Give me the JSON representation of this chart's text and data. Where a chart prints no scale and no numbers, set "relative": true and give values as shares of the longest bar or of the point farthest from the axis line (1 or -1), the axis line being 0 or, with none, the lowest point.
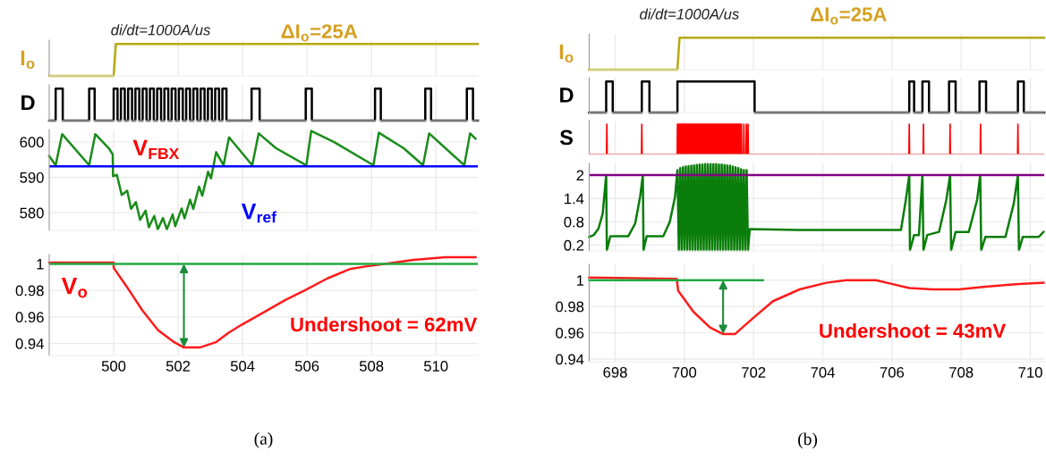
{
  "chart_data": [
    {
      "type": "step",
      "relative": true,
      "ylabel": "I$_{o}$",
      "xlim": [
        498.0,
        511.3
      ],
      "xticks": [
        500,
        502,
        504,
        506,
        508,
        510
      ],
      "tick_labels": false,
      "grid": "x",
      "annotations": [
        "di/dt=1000A/us",
        "ΔI$_{o}$=25A"
      ],
      "series": [
        {
          "color": "#b5aa10",
          "x": [
            498.0,
            500.0,
            500.07,
            511.3
          ],
          "values": [
            0,
            0,
            1,
            1
          ],
          "type": "line"
        }
      ]
    },
    {
      "type": "step",
      "relative": true,
      "ylabel": "D",
      "xlim": [
        498.0,
        511.3
      ],
      "xticks": [
        500,
        502,
        504,
        506,
        508,
        510
      ],
      "tick_labels": false,
      "grid": "x",
      "series": [
        {
          "color": "#000000",
          "x": [
            498.0,
            498.2,
            498.42,
            499.24,
            499.41,
            500.0,
            500.12,
            500.225,
            500.345,
            500.45,
            500.57,
            500.675,
            500.795,
            500.9,
            501.02,
            501.125,
            501.245,
            501.35,
            501.47,
            501.575,
            501.695,
            501.8,
            501.92,
            502.025,
            502.145,
            502.25,
            502.37,
            502.475,
            502.595,
            502.7,
            502.82,
            502.925,
            503.045,
            503.15,
            503.27,
            503.375,
            503.5,
            504.28,
            504.53,
            505.96,
            506.15,
            508.11,
            508.29,
            509.67,
            509.85,
            510.96,
            511.15,
            511.3
          ],
          "values": [
            0,
            1,
            0,
            1,
            0,
            1,
            0,
            1,
            0,
            1,
            0,
            1,
            0,
            1,
            0,
            1,
            0,
            1,
            0,
            1,
            0,
            1,
            0,
            1,
            0,
            1,
            0,
            1,
            0,
            1,
            0,
            1,
            0,
            1,
            0,
            1,
            0,
            1,
            0,
            1,
            0,
            1,
            0,
            1,
            0,
            1,
            0,
            0
          ]
        }
      ]
    },
    {
      "type": "line",
      "xlim": [
        498.0,
        511.3
      ],
      "xticks": [
        500,
        502,
        504,
        506,
        508,
        510
      ],
      "ylim": [
        575,
        603.5
      ],
      "yticks": [
        580,
        590,
        600
      ],
      "tick_labels": "y",
      "grid": true,
      "annotations": [
        "V$_{FBX}$"
      ],
      "ref_lines": [
        {
          "axis": "y",
          "value": 593.1,
          "label": "V$_{ref}$",
          "color": "#0000ff"
        }
      ],
      "series": [
        {
          "color": "#1a8c1a",
          "x": [
            498.0,
            498.2,
            498.4,
            499.24,
            499.43,
            499.85,
            499.97,
            499.98,
            500.1,
            500.25,
            500.42,
            500.54,
            500.69,
            500.82,
            500.99,
            501.09,
            501.26,
            501.37,
            501.53,
            501.65,
            501.83,
            501.91,
            502.11,
            502.2,
            502.37,
            502.47,
            502.65,
            502.75,
            502.93,
            503.02,
            503.18,
            503.41,
            503.58,
            504.3,
            504.5,
            505.04,
            505.98,
            506.13,
            506.83,
            508.06,
            508.23,
            509.0,
            509.6,
            509.79,
            510.88,
            511.06,
            511.23
          ],
          "values": [
            596.0,
            593.4,
            602.2,
            593.4,
            602.2,
            598.2,
            596.5,
            590.3,
            590.7,
            585.0,
            586.2,
            581.1,
            583.0,
            578.0,
            580.6,
            575.9,
            579.1,
            575.3,
            578.5,
            575.3,
            579.5,
            576.2,
            581.2,
            578.4,
            583.7,
            581.1,
            587.4,
            584.8,
            591.6,
            589.7,
            597.1,
            593.4,
            601.3,
            593.4,
            602.4,
            598.2,
            593.4,
            603.1,
            600.0,
            593.4,
            602.6,
            598.2,
            593.4,
            602.4,
            593.4,
            602.4,
            600.9
          ]
        }
      ]
    },
    {
      "type": "line",
      "xlim": [
        498.0,
        511.3
      ],
      "xticks": [
        500,
        502,
        504,
        506,
        508,
        510
      ],
      "ylim": [
        0.931,
        1.007
      ],
      "yticks": [
        0.94,
        0.96,
        0.98,
        1
      ],
      "grid": true,
      "annotations": [
        "V$_{o}$",
        "Undershoot = 62mV",
        "(a)"
      ],
      "ref_lines": [
        {
          "axis": "y",
          "value": 1,
          "color": "#22aa44"
        }
      ],
      "series": [
        {
          "color": "#ff1a1a",
          "x": [
            498.0,
            500.0,
            500.0,
            500.4,
            500.89,
            501.38,
            501.88,
            502.18,
            502.67,
            503.17,
            503.56,
            503.96,
            504.55,
            505.34,
            505.93,
            506.63,
            507.32,
            507.81,
            508.41,
            509.3,
            510.29,
            511.23
          ],
          "values": [
            1.001,
            1.001,
            0.997,
            0.983,
            0.965,
            0.95,
            0.941,
            0.937,
            0.937,
            0.941,
            0.948,
            0.954,
            0.962,
            0.973,
            0.98,
            0.989,
            0.996,
            0.998,
            1.0,
            1.003,
            1.005,
            1.005
          ]
        }
      ]
    },
    {
      "type": "step",
      "relative": true,
      "ylabel": "I$_{o}$",
      "xlim": [
        697.25,
        710.4
      ],
      "xticks": [
        698,
        700,
        702,
        704,
        706,
        708,
        710
      ],
      "tick_labels": false,
      "grid": "x",
      "annotations": [
        "di/dt=1000A/us",
        "ΔI$_{o}$=25A"
      ],
      "series": [
        {
          "color": "#b5aa10",
          "x": [
            697.25,
            699.8,
            699.86,
            710.4
          ],
          "values": [
            0,
            0,
            1,
            1
          ],
          "type": "line"
        }
      ]
    },
    {
      "type": "step",
      "relative": true,
      "ylabel": "D",
      "xlim": [
        697.25,
        710.4
      ],
      "xticks": [
        698,
        700,
        702,
        704,
        706,
        708,
        710
      ],
      "tick_labels": false,
      "grid": "x",
      "series": [
        {
          "color": "#000000",
          "x": [
            697.25,
            697.74,
            697.93,
            698.77,
            698.99,
            699.8,
            702.03,
            706.5,
            706.64,
            706.88,
            707.07,
            707.65,
            707.84,
            708.53,
            708.72,
            709.64,
            709.81,
            710.4
          ],
          "values": [
            0,
            1,
            0,
            1,
            0,
            1,
            0,
            1,
            0,
            1,
            0,
            1,
            0,
            1,
            0,
            1,
            0,
            0
          ]
        }
      ]
    },
    {
      "type": "area",
      "relative": true,
      "ylabel": "S",
      "xlim": [
        697.25,
        710.4
      ],
      "xticks": [
        698,
        700,
        702,
        704,
        706,
        708,
        710
      ],
      "tick_labels": false,
      "grid": "x",
      "series": [
        {
          "color": "#ff0000",
          "x": [
            697.25,
            697.75,
            697.76,
            697.77,
            698.76,
            698.77,
            698.78,
            699.79,
            699.8,
            701.65,
            701.66,
            701.71,
            701.72,
            701.73,
            701.78,
            701.79,
            701.8,
            701.83,
            701.84,
            701.85,
            706.49,
            706.5,
            706.51,
            706.9,
            706.91,
            706.92,
            707.67,
            707.68,
            707.69,
            708.55,
            708.56,
            708.57,
            709.63,
            709.64,
            709.65,
            710.4
          ],
          "values": [
            0,
            0,
            1,
            0,
            0,
            1,
            0,
            0,
            1,
            1,
            0,
            0,
            1,
            0,
            0,
            1,
            0,
            0,
            1,
            0,
            0,
            1,
            0,
            0,
            1,
            0,
            0,
            1,
            0,
            0,
            1,
            0,
            0,
            1,
            0,
            0
          ]
        }
      ]
    },
    {
      "type": "line",
      "xlim": [
        697.25,
        710.4
      ],
      "xticks": [
        698,
        700,
        702,
        704,
        706,
        708,
        710
      ],
      "ylim": [
        0.05,
        2.3
      ],
      "yticks": [
        0.2,
        0.8,
        1.4,
        2
      ],
      "tick_labels": "y",
      "grid": true,
      "ref_lines": [
        {
          "axis": "y",
          "value": 2,
          "color": "#800080"
        }
      ],
      "series": [
        {
          "color": "#0a7d0a",
          "x": [
            697.25,
            697.38,
            697.52,
            697.64,
            697.74,
            697.76,
            697.86,
            698.38,
            698.58,
            698.72,
            698.8,
            698.82,
            698.91,
            699.39,
            699.58,
            699.73,
            699.8,
            699.84,
            699.88,
            699.92,
            699.96,
            700.0,
            700.04,
            700.08,
            700.12,
            700.16,
            700.2,
            700.24,
            700.28,
            700.32,
            700.36,
            700.4,
            700.44,
            700.48,
            700.52,
            700.56,
            700.6,
            700.64,
            700.68,
            700.72,
            700.76,
            700.8,
            700.84,
            700.88,
            700.92,
            700.96,
            701.0,
            701.04,
            701.08,
            701.12,
            701.16,
            701.2,
            701.24,
            701.28,
            701.32,
            701.36,
            701.4,
            701.44,
            701.48,
            701.52,
            701.56,
            701.6,
            701.64,
            701.68,
            701.72,
            701.76,
            701.8,
            701.84,
            701.89,
            703.33,
            706.26,
            706.4,
            706.5,
            706.52,
            706.64,
            706.78,
            706.88,
            706.91,
            707.02,
            707.36,
            707.57,
            707.68,
            707.71,
            707.84,
            708.22,
            708.46,
            708.55,
            708.58,
            708.7,
            709.28,
            709.52,
            709.64,
            709.67,
            709.78,
            710.24,
            710.38
          ],
          "values": [
            0.41,
            0.46,
            0.63,
            1.01,
            2.0,
            0.07,
            0.43,
            0.43,
            0.76,
            1.44,
            2.0,
            0.07,
            0.43,
            0.43,
            0.8,
            1.44,
            2.13,
            0.07,
            2.18,
            0.07,
            2.2,
            0.07,
            2.22,
            0.07,
            2.23,
            0.07,
            2.24,
            0.07,
            2.25,
            0.07,
            2.26,
            0.07,
            2.27,
            0.07,
            2.27,
            0.07,
            2.28,
            0.07,
            2.28,
            0.07,
            2.28,
            0.07,
            2.28,
            0.07,
            2.28,
            0.07,
            2.27,
            0.07,
            2.27,
            0.07,
            2.26,
            0.07,
            2.25,
            0.07,
            2.24,
            0.07,
            2.22,
            0.07,
            2.2,
            0.07,
            2.18,
            0.07,
            2.15,
            0.07,
            2.13,
            0.07,
            2.13,
            0.07,
            0.61,
            0.59,
            0.59,
            1.36,
            2.0,
            0.07,
            0.46,
            0.46,
            2.0,
            0.07,
            0.46,
            0.54,
            1.36,
            2.0,
            0.07,
            0.54,
            0.54,
            1.36,
            2.0,
            0.07,
            0.41,
            0.41,
            1.27,
            2.0,
            0.07,
            0.41,
            0.41,
            0.54
          ]
        }
      ]
    },
    {
      "type": "line",
      "xlim": [
        697.25,
        710.4
      ],
      "xticks": [
        698,
        700,
        702,
        704,
        706,
        708,
        710
      ],
      "ylim": [
        0.938,
        1.012
      ],
      "yticks": [
        0.94,
        0.96,
        0.98,
        1
      ],
      "grid": true,
      "annotations": [
        "Undershoot = 43mV",
        "(b)"
      ],
      "series": [
        {
          "color": "#ff1a1a",
          "x": [
            697.25,
            699.78,
            699.82,
            700.26,
            700.74,
            701.12,
            701.46,
            701.98,
            702.56,
            703.33,
            704.1,
            704.67,
            705.54,
            706.02,
            706.5,
            707.17,
            707.94,
            708.7,
            709.66,
            710.38
          ],
          "values": [
            1.002,
            1.001,
            0.992,
            0.976,
            0.964,
            0.959,
            0.959,
            0.971,
            0.984,
            0.993,
            0.998,
            1.0,
            1.0,
            0.997,
            0.994,
            0.993,
            0.993,
            0.995,
            0.997,
            0.998
          ]
        },
        {
          "color": "#22aa44",
          "x": [
            697.25,
            702.27
          ],
          "values": [
            1,
            1
          ]
        }
      ]
    }
  ]
}
